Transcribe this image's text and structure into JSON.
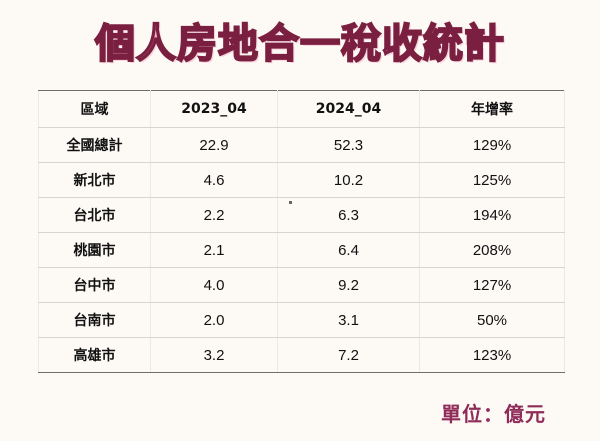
{
  "title": "個人房地合一稅收統計",
  "table": {
    "headers": [
      "區域",
      "2023_04",
      "2024_04",
      "年增率"
    ],
    "rows": [
      [
        "全國總計",
        "22.9",
        "52.3",
        "129%"
      ],
      [
        "新北市",
        "4.6",
        "10.2",
        "125%"
      ],
      [
        "台北市",
        "2.2",
        "6.3",
        "194%"
      ],
      [
        "桃園市",
        "2.1",
        "6.4",
        "208%"
      ],
      [
        "台中市",
        "4.0",
        "9.2",
        "127%"
      ],
      [
        "台南市",
        "2.0",
        "3.1",
        "50%"
      ],
      [
        "高雄市",
        "3.2",
        "7.2",
        "123%"
      ]
    ]
  },
  "unit": "單位：億元",
  "colors": {
    "title_fill": "#f4b5c8",
    "title_stroke": "#7a1f3f",
    "unit_text": "#8f2b58",
    "background": "#fdfaf6"
  }
}
